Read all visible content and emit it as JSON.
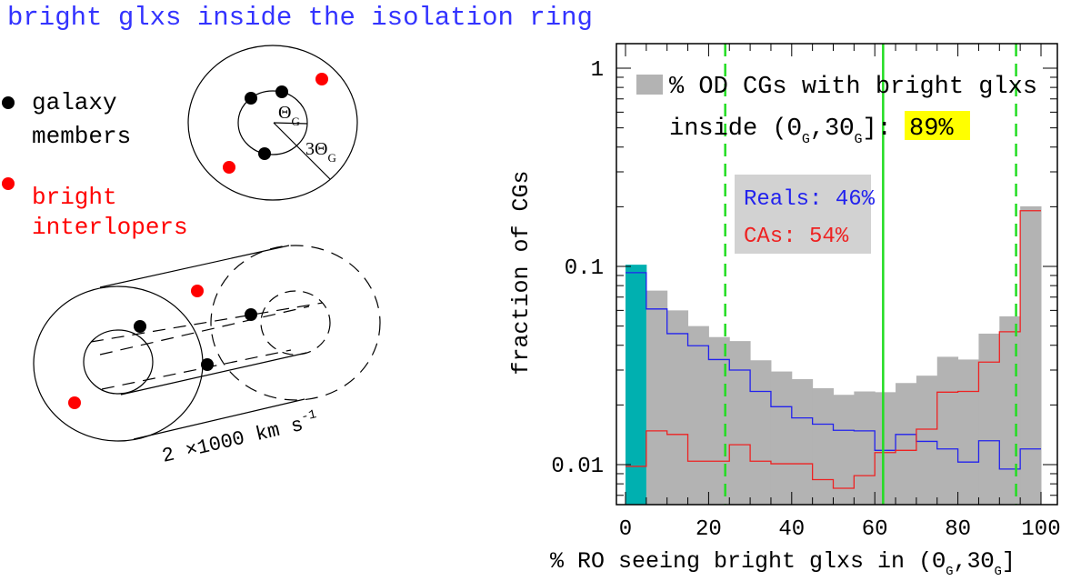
{
  "title": "bright glxs inside the isolation ring",
  "colors": {
    "title": "#3333ff",
    "members": "#000000",
    "interlopers": "#ff0000",
    "hist_fill": "#b3b3b3",
    "first_bin": "#00b0b0",
    "reals": "#2222ee",
    "cas": "#ee2222",
    "marker": "#22dd22",
    "highlight": "#ffff00"
  },
  "diagram": {
    "legend": {
      "members": [
        "galaxy",
        "members"
      ],
      "interlopers": [
        "bright",
        "interlopers"
      ]
    },
    "ring_labels": {
      "inner": "Θ",
      "outer": "3Θ",
      "subscript": "G"
    },
    "velocity_label": {
      "main": "2 ×1000 km s",
      "exp": "-1"
    }
  },
  "chart_data": {
    "type": "bar",
    "xlabel_parts": [
      "% RO seeing bright glxs in (Θ",
      "G",
      ",3Θ",
      "G",
      "]"
    ],
    "ylabel": "fraction of CGs",
    "xlim": [
      0,
      100
    ],
    "ylim": [
      0.0062,
      1.34
    ],
    "yscale": "log",
    "xticks": [
      "0",
      "20",
      "40",
      "60",
      "80",
      "100"
    ],
    "yticks": [
      "1",
      "0.1",
      "0.01"
    ],
    "bin_edges_step": 5,
    "legend": {
      "line1": "% OD CGs with bright glxs",
      "line2_parts": [
        "inside (Θ",
        "G",
        ",3Θ",
        "G",
        "]:"
      ],
      "highlight": "89%"
    },
    "inset": {
      "reals": "Reals: 46%",
      "cas": "CAs: 54%"
    },
    "series": [
      {
        "name": "% OD CGs with bright glxs",
        "style": "filled-histogram",
        "values": [
          0.102,
          0.0755,
          0.06,
          0.05,
          0.044,
          0.042,
          0.0336,
          0.0295,
          0.027,
          0.0243,
          0.0225,
          0.0234,
          0.0232,
          0.0258,
          0.0281,
          0.035,
          0.0339,
          0.0458,
          0.056,
          0.201
        ]
      },
      {
        "name": "Reals",
        "style": "step",
        "values": [
          0.093,
          0.061,
          0.0458,
          0.0398,
          0.0339,
          0.03,
          0.0234,
          0.0196,
          0.0172,
          0.016,
          0.0149,
          0.0148,
          0.0118,
          0.0142,
          0.0131,
          0.012,
          0.0103,
          0.0132,
          0.0095,
          0.012
        ]
      },
      {
        "name": "CAs",
        "style": "step",
        "values": [
          0.0098,
          0.0148,
          0.0142,
          0.0104,
          0.0104,
          0.0126,
          0.0104,
          0.0101,
          0.0101,
          0.0084,
          0.0076,
          0.0088,
          0.0115,
          0.0118,
          0.0151,
          0.0232,
          0.0234,
          0.0329,
          0.0468,
          0.191
        ]
      }
    ],
    "vlines": [
      {
        "x": 24,
        "style": "dashed"
      },
      {
        "x": 62,
        "style": "solid"
      },
      {
        "x": 94,
        "style": "dashed"
      }
    ],
    "grid": false
  }
}
